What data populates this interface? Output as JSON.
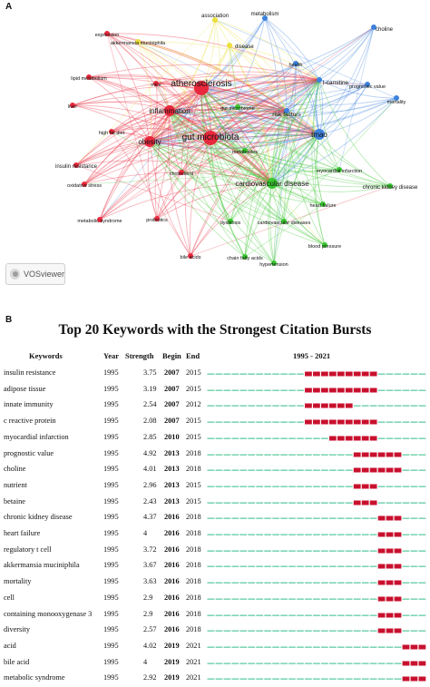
{
  "panel_a": {
    "label": "A",
    "watermark": "VOSviewer",
    "nodes": [
      {
        "label": "atherosclerosis",
        "cluster": "red",
        "size": "large"
      },
      {
        "label": "gut microbiota",
        "cluster": "red",
        "size": "large"
      },
      {
        "label": "inflammation",
        "cluster": "red",
        "size": "medium"
      },
      {
        "label": "obesity",
        "cluster": "red",
        "size": "medium"
      },
      {
        "label": "cardiovascular disease",
        "cluster": "green",
        "size": "medium"
      },
      {
        "label": "tmao",
        "cluster": "blue",
        "size": "medium"
      },
      {
        "label": "l-carnitine",
        "cluster": "blue",
        "size": "small"
      },
      {
        "label": "risk factors",
        "cluster": "blue",
        "size": "small"
      },
      {
        "label": "metabolism",
        "cluster": "blue",
        "size": "small"
      },
      {
        "label": "choline",
        "cluster": "blue",
        "size": "small"
      },
      {
        "label": "health",
        "cluster": "blue",
        "size": "small"
      },
      {
        "label": "prognostic value",
        "cluster": "blue",
        "size": "small"
      },
      {
        "label": "mortality",
        "cluster": "blue",
        "size": "small"
      },
      {
        "label": "association",
        "cluster": "yellow",
        "size": "small"
      },
      {
        "label": "disease",
        "cluster": "yellow",
        "size": "small"
      },
      {
        "label": "akkermansia muciniphila",
        "cluster": "yellow",
        "size": "small"
      },
      {
        "label": "expression",
        "cluster": "red",
        "size": "small"
      },
      {
        "label": "lipid metabolism",
        "cluster": "red",
        "size": "small"
      },
      {
        "label": "liver",
        "cluster": "red",
        "size": "small"
      },
      {
        "label": "high fat diet",
        "cluster": "red",
        "size": "small"
      },
      {
        "label": "insulin resistance",
        "cluster": "red",
        "size": "small"
      },
      {
        "label": "oxidative stress",
        "cluster": "red",
        "size": "small"
      },
      {
        "label": "metabolic syndrome",
        "cluster": "red",
        "size": "small"
      },
      {
        "label": "probiotics",
        "cluster": "red",
        "size": "small"
      },
      {
        "label": "cholesterol",
        "cluster": "red",
        "size": "small"
      },
      {
        "label": "bile acids",
        "cluster": "red",
        "size": "small"
      },
      {
        "label": "mice",
        "cluster": "red",
        "size": "small"
      },
      {
        "label": "gut microbiome",
        "cluster": "green",
        "size": "small"
      },
      {
        "label": "metabolites",
        "cluster": "green",
        "size": "small"
      },
      {
        "label": "myocardial infarction",
        "cluster": "green",
        "size": "small"
      },
      {
        "label": "chronic kidney disease",
        "cluster": "green",
        "size": "small"
      },
      {
        "label": "heart failure",
        "cluster": "green",
        "size": "small"
      },
      {
        "label": "dysbiosis",
        "cluster": "green",
        "size": "small"
      },
      {
        "label": "cardiovascular diseases",
        "cluster": "green",
        "size": "small"
      },
      {
        "label": "blood pressure",
        "cluster": "green",
        "size": "small"
      },
      {
        "label": "chain fatty acids",
        "cluster": "green",
        "size": "small"
      },
      {
        "label": "hypertension",
        "cluster": "green",
        "size": "small"
      }
    ],
    "colors": {
      "red": "#e8283c",
      "green": "#38c62f",
      "blue": "#3d82dc",
      "yellow": "#eadf3c"
    }
  },
  "panel_b": {
    "label": "B",
    "title": "Top 20 Keywords with the Strongest Citation Bursts",
    "headers": {
      "keywords": "Keywords",
      "year": "Year",
      "strength": "Strength",
      "begin": "Begin",
      "end": "End",
      "range": "1995 - 2021"
    },
    "range_start": 1995,
    "range_end": 2021,
    "colors": {
      "burst": "#c8102e",
      "base": "#7fd6b4"
    },
    "rows": [
      {
        "keyword": "insulin resistance",
        "year": "1995",
        "strength": "3.75",
        "begin": "2007",
        "end": "2015"
      },
      {
        "keyword": "adipose tissue",
        "year": "1995",
        "strength": "3.19",
        "begin": "2007",
        "end": "2015"
      },
      {
        "keyword": "innate immunity",
        "year": "1995",
        "strength": "2.54",
        "begin": "2007",
        "end": "2012"
      },
      {
        "keyword": "c reactive protein",
        "year": "1995",
        "strength": "2.08",
        "begin": "2007",
        "end": "2015"
      },
      {
        "keyword": "myocardial infarction",
        "year": "1995",
        "strength": "2.85",
        "begin": "2010",
        "end": "2015"
      },
      {
        "keyword": "prognostic value",
        "year": "1995",
        "strength": "4.92",
        "begin": "2013",
        "end": "2018"
      },
      {
        "keyword": "choline",
        "year": "1995",
        "strength": "4.01",
        "begin": "2013",
        "end": "2018"
      },
      {
        "keyword": "nutrient",
        "year": "1995",
        "strength": "2.96",
        "begin": "2013",
        "end": "2015"
      },
      {
        "keyword": "betaine",
        "year": "1995",
        "strength": "2.43",
        "begin": "2013",
        "end": "2015"
      },
      {
        "keyword": "chronic kidney disease",
        "year": "1995",
        "strength": "4.37",
        "begin": "2016",
        "end": "2018"
      },
      {
        "keyword": "heart failure",
        "year": "1995",
        "strength": "4",
        "begin": "2016",
        "end": "2018"
      },
      {
        "keyword": "regulatory t cell",
        "year": "1995",
        "strength": "3.72",
        "begin": "2016",
        "end": "2018"
      },
      {
        "keyword": "akkermansia muciniphila",
        "year": "1995",
        "strength": "3.67",
        "begin": "2016",
        "end": "2018"
      },
      {
        "keyword": "mortality",
        "year": "1995",
        "strength": "3.63",
        "begin": "2016",
        "end": "2018"
      },
      {
        "keyword": "cell",
        "year": "1995",
        "strength": "2.9",
        "begin": "2016",
        "end": "2018"
      },
      {
        "keyword": "containing monooxygenase 3",
        "year": "1995",
        "strength": "2.9",
        "begin": "2016",
        "end": "2018"
      },
      {
        "keyword": "diversity",
        "year": "1995",
        "strength": "2.57",
        "begin": "2016",
        "end": "2018"
      },
      {
        "keyword": "acid",
        "year": "1995",
        "strength": "4.02",
        "begin": "2019",
        "end": "2021"
      },
      {
        "keyword": "bile acid",
        "year": "1995",
        "strength": "4",
        "begin": "2019",
        "end": "2021"
      },
      {
        "keyword": "metabolic syndrome",
        "year": "1995",
        "strength": "2.92",
        "begin": "2019",
        "end": "2021"
      }
    ]
  }
}
